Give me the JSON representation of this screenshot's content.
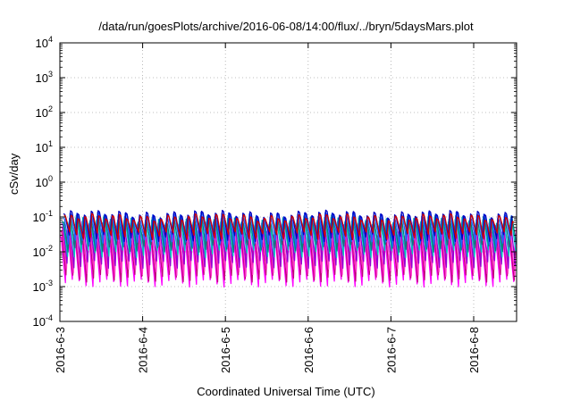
{
  "chart_data": {
    "type": "line",
    "title": "/data/run/goesPlots/archive/2016-06-08/14:00/flux/../bryn/5daysMars.plot",
    "xlabel": "Coordinated Universal Time (UTC)",
    "ylabel": "cSv/day",
    "yscale": "log",
    "ylim": [
      0.0001,
      10000
    ],
    "yticks": [
      {
        "mantissa": "10",
        "exp": "-4",
        "value": 0.0001
      },
      {
        "mantissa": "10",
        "exp": "-3",
        "value": 0.001
      },
      {
        "mantissa": "10",
        "exp": "-2",
        "value": 0.01
      },
      {
        "mantissa": "10",
        "exp": "-1",
        "value": 0.1
      },
      {
        "mantissa": "10",
        "exp": "0",
        "value": 1
      },
      {
        "mantissa": "10",
        "exp": "1",
        "value": 10
      },
      {
        "mantissa": "10",
        "exp": "2",
        "value": 100
      },
      {
        "mantissa": "10",
        "exp": "3",
        "value": 1000
      },
      {
        "mantissa": "10",
        "exp": "4",
        "value": 10000
      }
    ],
    "xlim": [
      "2016-06-03 00:00",
      "2016-06-08 14:00"
    ],
    "xticks": [
      "2016-6-3",
      "2016-6-4",
      "2016-6-5",
      "2016-6-6",
      "2016-6-7",
      "2016-6-8"
    ],
    "grid": true,
    "legend": "none",
    "pattern": {
      "oscillations_per_day": 12,
      "peak_range": [
        0.07,
        0.14
      ],
      "trough_range": [
        0.0012,
        0.03
      ]
    },
    "series": [
      {
        "color": "#ff00ff",
        "peak": 0.028,
        "trough": 0.0013
      },
      {
        "color": "#c0007a",
        "peak": 0.035,
        "trough": 0.0018
      },
      {
        "color": "#ff33cc",
        "peak": 0.045,
        "trough": 0.0026
      },
      {
        "color": "#9400d3",
        "peak": 0.06,
        "trough": 0.0045
      },
      {
        "color": "#00c0c0",
        "peak": 0.08,
        "trough": 0.009
      },
      {
        "color": "#008080",
        "peak": 0.09,
        "trough": 0.013
      },
      {
        "color": "#1e64ff",
        "peak": 0.11,
        "trough": 0.018
      },
      {
        "color": "#0000c0",
        "peak": 0.125,
        "trough": 0.026
      },
      {
        "color": "#d00000",
        "peak": 0.1,
        "trough": 0.03
      }
    ]
  }
}
